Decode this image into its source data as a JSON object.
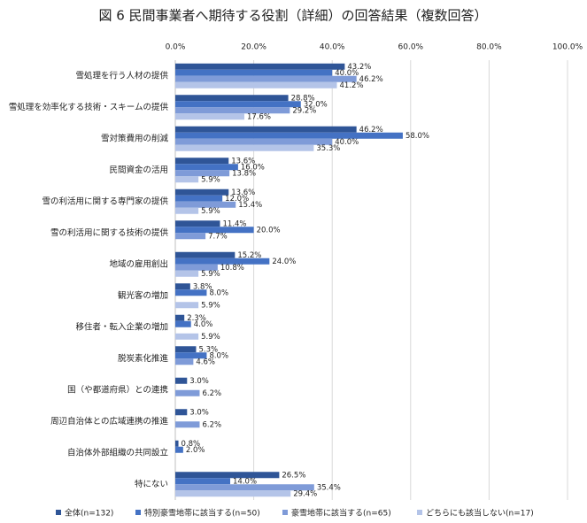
{
  "chart_data": {
    "type": "hbar",
    "title": "図 6 民間事業者へ期待する役割（詳細）の回答結果（複数回答）",
    "categories": [
      "雪処理を行う人材の提供",
      "雪処理を効率化する技術・スキームの提供",
      "雪対策費用の削減",
      "民間資金の活用",
      "雪の利活用に関する専門家の提供",
      "雪の利活用に関する技術の提供",
      "地域の雇用創出",
      "観光客の増加",
      "移住者・転入企業の増加",
      "脱炭素化推進",
      "国（や都道府県）との連携",
      "周辺自治体との広域連携の推進",
      "自治体外部組織の共同設立",
      "特にない"
    ],
    "series": [
      {
        "name": "全体(n=132)",
        "color": "#2f5597",
        "values": [
          43.2,
          28.8,
          46.2,
          13.6,
          13.6,
          11.4,
          15.2,
          3.8,
          2.3,
          5.3,
          3.0,
          3.0,
          0.8,
          26.5
        ],
        "value_labels": [
          "43.2%",
          "28.8%",
          "46.2%",
          "13.6%",
          "13.6%",
          "11.4%",
          "15.2%",
          "3.8%",
          "2.3%",
          "5.3%",
          "3.0%",
          "3.0%",
          "0.8%",
          "26.5%"
        ]
      },
      {
        "name": "特別豪雪地帯に該当する(n=50)",
        "color": "#4472c4",
        "values": [
          40.0,
          32.0,
          58.0,
          16.0,
          12.0,
          20.0,
          24.0,
          8.0,
          4.0,
          8.0,
          0,
          0,
          2.0,
          14.0
        ],
        "value_labels": [
          "40.0%",
          "32.0%",
          "58.0%",
          "16.0%",
          "12.0%",
          "20.0%",
          "24.0%",
          "8.0%",
          "4.0%",
          "8.0%",
          null,
          null,
          "2.0%",
          "14.0%"
        ]
      },
      {
        "name": "豪雪地帯に該当する(n=65)",
        "color": "#7f9bd8",
        "values": [
          46.2,
          29.2,
          40.0,
          13.8,
          15.4,
          7.7,
          10.8,
          0,
          0,
          4.6,
          6.2,
          6.2,
          0,
          35.4
        ],
        "value_labels": [
          "46.2%",
          "29.2%",
          "40.0%",
          "13.8%",
          "15.4%",
          "7.7%",
          "10.8%",
          null,
          null,
          "4.6%",
          "6.2%",
          "6.2%",
          null,
          "35.4%"
        ]
      },
      {
        "name": "どちらにも該当しない(n=17)",
        "color": "#b4c4e8",
        "values": [
          41.2,
          17.6,
          35.3,
          5.9,
          5.9,
          0,
          5.9,
          5.9,
          5.9,
          0,
          0,
          0,
          0,
          29.4
        ],
        "value_labels": [
          "41.2%",
          "17.6%",
          "35.3%",
          "5.9%",
          "5.9%",
          null,
          "5.9%",
          "5.9%",
          "5.9%",
          null,
          null,
          null,
          null,
          "29.4%"
        ]
      }
    ],
    "xlim": [
      0,
      100
    ],
    "xticks": [
      {
        "value": 0,
        "label": "0.0%"
      },
      {
        "value": 20,
        "label": "20.0%"
      },
      {
        "value": 40,
        "label": "40.0%"
      },
      {
        "value": 60,
        "label": "60.0%"
      },
      {
        "value": 80,
        "label": "80.0%"
      },
      {
        "value": 100,
        "label": "100.0%"
      }
    ],
    "grid": true,
    "legend": "bottom"
  }
}
